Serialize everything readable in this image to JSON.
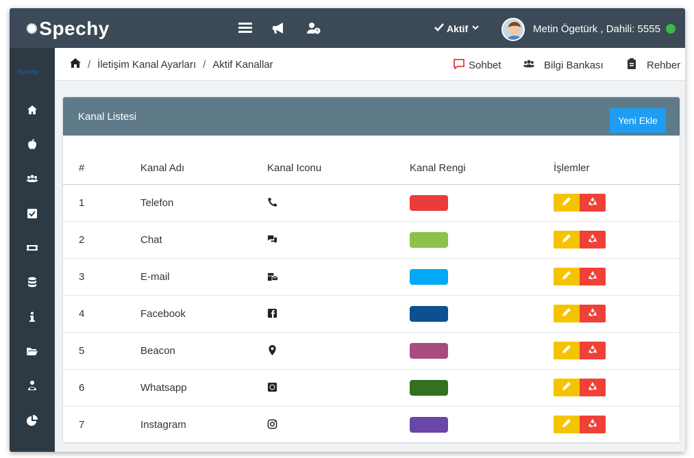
{
  "app": {
    "brand": "Spechy",
    "mini_brand": "Spechy"
  },
  "header": {
    "status_label": "Aktif",
    "user_label": "Metin Ögetürk , Dahili: 5555",
    "online_color": "#3cb84a"
  },
  "breadcrumb": {
    "items": [
      "İletişim Kanal Ayarları",
      "Aktif Kanallar"
    ]
  },
  "quick_links": {
    "chat": "Sohbet",
    "knowledge": "Bilgi Bankası",
    "directory": "Rehber"
  },
  "card": {
    "title": "Kanal Listesi",
    "add_button": "Yeni Ekle",
    "columns": [
      "#",
      "Kanal Adı",
      "Kanal Iconu",
      "Kanal Rengi",
      "İşlemler"
    ],
    "rows": [
      {
        "no": "1",
        "name": "Telefon",
        "icon": "phone-icon",
        "color": "#ea3c3a"
      },
      {
        "no": "2",
        "name": "Chat",
        "icon": "comments-icon",
        "color": "#8bc34a"
      },
      {
        "no": "3",
        "name": "E-mail",
        "icon": "mail-bulk-icon",
        "color": "#03a9f4"
      },
      {
        "no": "4",
        "name": "Facebook",
        "icon": "facebook-icon",
        "color": "#0d4f93"
      },
      {
        "no": "5",
        "name": "Beacon",
        "icon": "map-marker-icon",
        "color": "#a84c7f"
      },
      {
        "no": "6",
        "name": "Whatsapp",
        "icon": "whatsapp-icon",
        "color": "#32711f"
      },
      {
        "no": "7",
        "name": "Instagram",
        "icon": "instagram-icon",
        "color": "#6847a6"
      }
    ]
  }
}
